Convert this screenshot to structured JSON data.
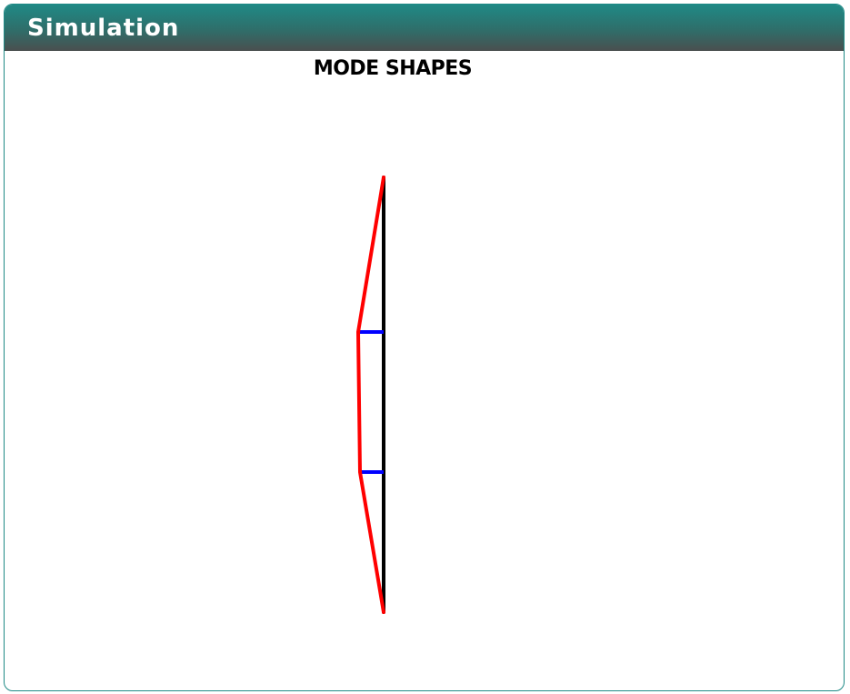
{
  "panel": {
    "title": "Simulation"
  },
  "diagram": {
    "title": "MODE SHAPES",
    "colors": {
      "undeformed": "#000000",
      "mode_shape": "#ff0000",
      "connectors": "#0000ff"
    }
  }
}
